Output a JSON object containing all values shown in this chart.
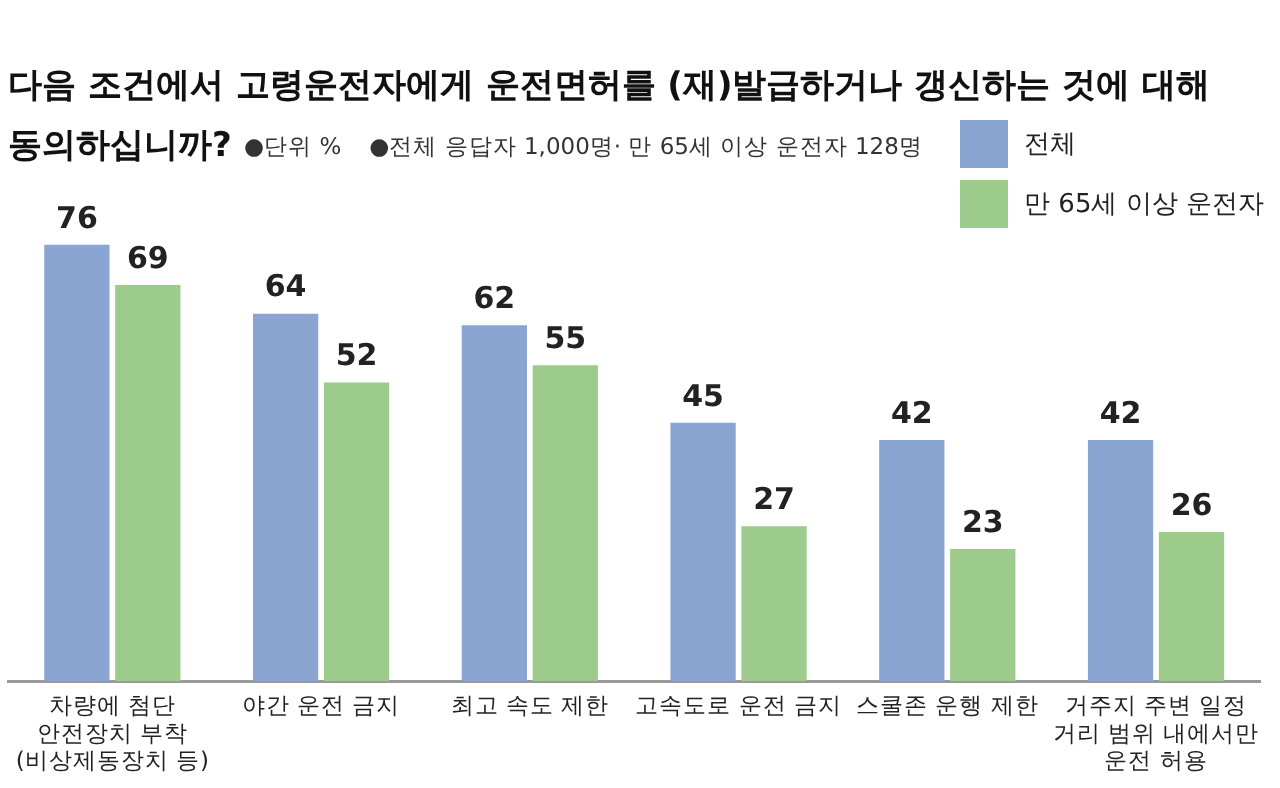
{
  "chart_data": {
    "type": "bar",
    "title": "다음 조건에서 고령운전자에게 운전면허를 (재)발급하거나 갱신하는 것에 대해\n동의하십니까?",
    "annotations": [
      "●단위 %",
      "●전체 응답자 1,000명· 만 65세 이상 운전자 128명"
    ],
    "categories": [
      "차량에 첨단\n안전장치 부착\n(비상제동장치 등)",
      "야간 운전 금지",
      "최고 속도 제한",
      "고속도로 운전 금지",
      "스쿨존 운행 제한",
      "거주지 주변 일정\n거리 범위 내에서만\n운전 허용"
    ],
    "series": [
      {
        "name": "전체",
        "color": "#8aa5d2",
        "values": [
          76,
          64,
          62,
          45,
          42,
          42
        ]
      },
      {
        "name": "만 65세 이상 운전자",
        "color": "#9dcb8c",
        "values": [
          69,
          52,
          55,
          27,
          23,
          26
        ]
      }
    ],
    "data_labels": true,
    "legend": "top right",
    "grid": false
  }
}
